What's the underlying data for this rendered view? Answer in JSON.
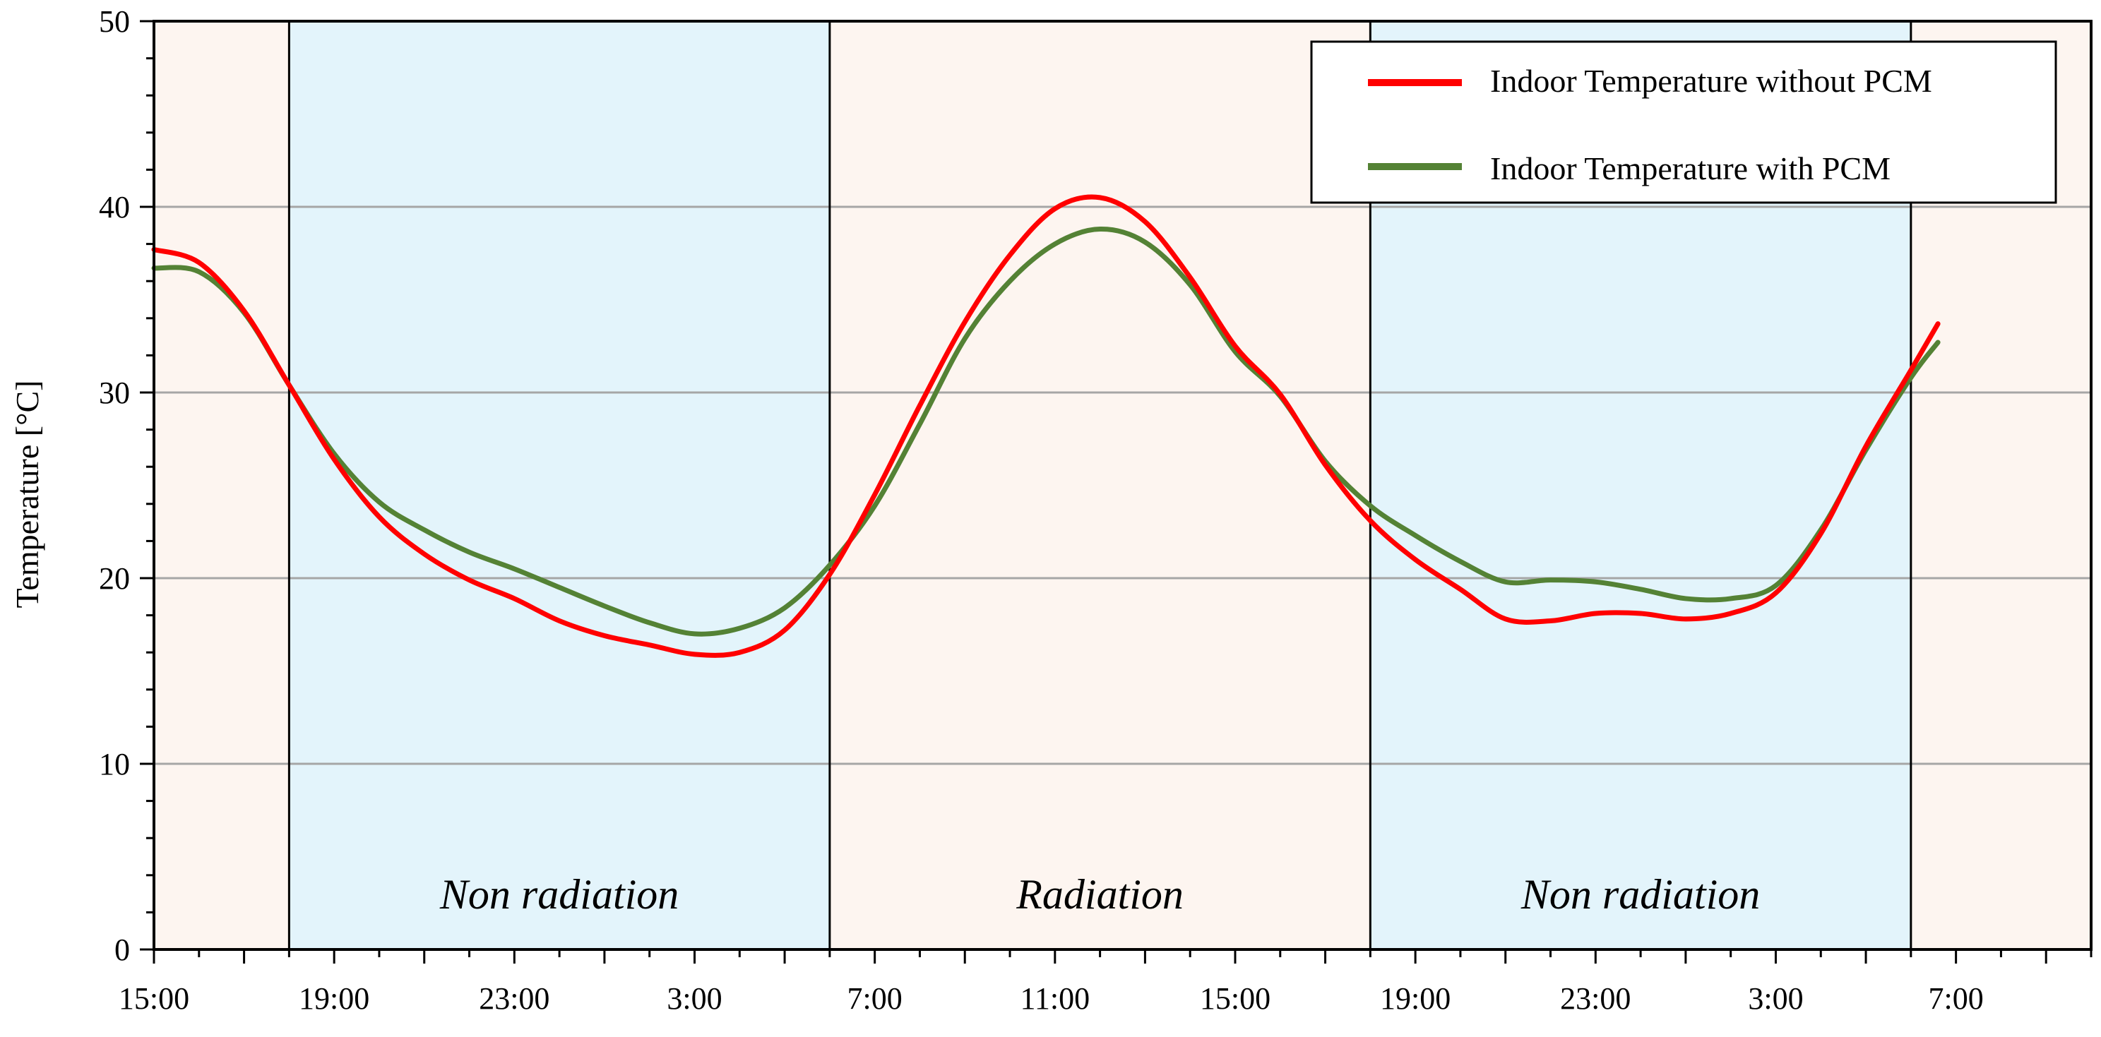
{
  "chart_data": {
    "type": "line",
    "title": "",
    "xlabel": "",
    "ylabel": "Temperature [°C]",
    "ylim": [
      0,
      50
    ],
    "xlim": [
      15,
      58
    ],
    "x_unit": "hours from start (15:00 = 15)",
    "yticks": [
      0,
      10,
      20,
      30,
      40,
      50
    ],
    "xticks": [
      {
        "x": 15,
        "label": "15:00"
      },
      {
        "x": 19,
        "label": "19:00"
      },
      {
        "x": 23,
        "label": "23:00"
      },
      {
        "x": 27,
        "label": "3:00"
      },
      {
        "x": 31,
        "label": "7:00"
      },
      {
        "x": 35,
        "label": "11:00"
      },
      {
        "x": 39,
        "label": "15:00"
      },
      {
        "x": 43,
        "label": "19:00"
      },
      {
        "x": 47,
        "label": "23:00"
      },
      {
        "x": 51,
        "label": "3:00"
      },
      {
        "x": 55,
        "label": "7:00"
      }
    ],
    "grid": "horizontal",
    "legend_position": "top-right",
    "regions": [
      {
        "start": 15,
        "end": 18,
        "label": "",
        "color": "#fdf5f0"
      },
      {
        "start": 18,
        "end": 30,
        "label": "Non radiation",
        "color": "#e3f4fb"
      },
      {
        "start": 30,
        "end": 42,
        "label": "Radiation",
        "color": "#fdf5f0"
      },
      {
        "start": 42,
        "end": 54,
        "label": "Non radiation",
        "color": "#e3f4fb"
      },
      {
        "start": 54,
        "end": 58,
        "label": "",
        "color": "#fdf5f0"
      }
    ],
    "series": [
      {
        "name": "Indoor Temperature without PCM",
        "color": "#ff0000",
        "points": [
          [
            15,
            37.7
          ],
          [
            16,
            37.0
          ],
          [
            17,
            34.4
          ],
          [
            18,
            30.4
          ],
          [
            19,
            26.4
          ],
          [
            20,
            23.3
          ],
          [
            21,
            21.3
          ],
          [
            22,
            19.9
          ],
          [
            23,
            18.9
          ],
          [
            24,
            17.7
          ],
          [
            25,
            16.9
          ],
          [
            26,
            16.4
          ],
          [
            27,
            15.9
          ],
          [
            28,
            16.0
          ],
          [
            29,
            17.2
          ],
          [
            30,
            20.2
          ],
          [
            31,
            24.5
          ],
          [
            32,
            29.3
          ],
          [
            33,
            33.8
          ],
          [
            34,
            37.4
          ],
          [
            35,
            39.9
          ],
          [
            36,
            40.5
          ],
          [
            37,
            39.2
          ],
          [
            38,
            36.2
          ],
          [
            39,
            32.5
          ],
          [
            40,
            29.9
          ],
          [
            41,
            26.1
          ],
          [
            42,
            23.1
          ],
          [
            43,
            21.0
          ],
          [
            44,
            19.4
          ],
          [
            45,
            17.8
          ],
          [
            46,
            17.7
          ],
          [
            47,
            18.1
          ],
          [
            48,
            18.1
          ],
          [
            49,
            17.8
          ],
          [
            50,
            18.1
          ],
          [
            51,
            19.2
          ],
          [
            52,
            22.4
          ],
          [
            53,
            27.1
          ],
          [
            54,
            31.2
          ],
          [
            54.6,
            33.7
          ]
        ]
      },
      {
        "name": "Indoor Temperature with PCM",
        "color": "#548235",
        "points": [
          [
            15,
            36.7
          ],
          [
            16,
            36.5
          ],
          [
            17,
            34.3
          ],
          [
            18,
            30.4
          ],
          [
            19,
            26.7
          ],
          [
            20,
            24.1
          ],
          [
            21,
            22.6
          ],
          [
            22,
            21.4
          ],
          [
            23,
            20.5
          ],
          [
            24,
            19.5
          ],
          [
            25,
            18.5
          ],
          [
            26,
            17.6
          ],
          [
            27,
            17.0
          ],
          [
            28,
            17.3
          ],
          [
            29,
            18.4
          ],
          [
            30,
            20.7
          ],
          [
            31,
            23.9
          ],
          [
            32,
            28.3
          ],
          [
            33,
            32.9
          ],
          [
            34,
            36.0
          ],
          [
            35,
            38.0
          ],
          [
            36,
            38.8
          ],
          [
            37,
            38.1
          ],
          [
            38,
            35.8
          ],
          [
            39,
            32.2
          ],
          [
            40,
            29.8
          ],
          [
            41,
            26.3
          ],
          [
            42,
            23.9
          ],
          [
            43,
            22.3
          ],
          [
            44,
            20.9
          ],
          [
            45,
            19.8
          ],
          [
            46,
            19.9
          ],
          [
            47,
            19.8
          ],
          [
            48,
            19.4
          ],
          [
            49,
            18.9
          ],
          [
            50,
            18.9
          ],
          [
            51,
            19.6
          ],
          [
            52,
            22.6
          ],
          [
            53,
            26.9
          ],
          [
            54,
            30.8
          ],
          [
            54.6,
            32.7
          ]
        ]
      }
    ]
  }
}
